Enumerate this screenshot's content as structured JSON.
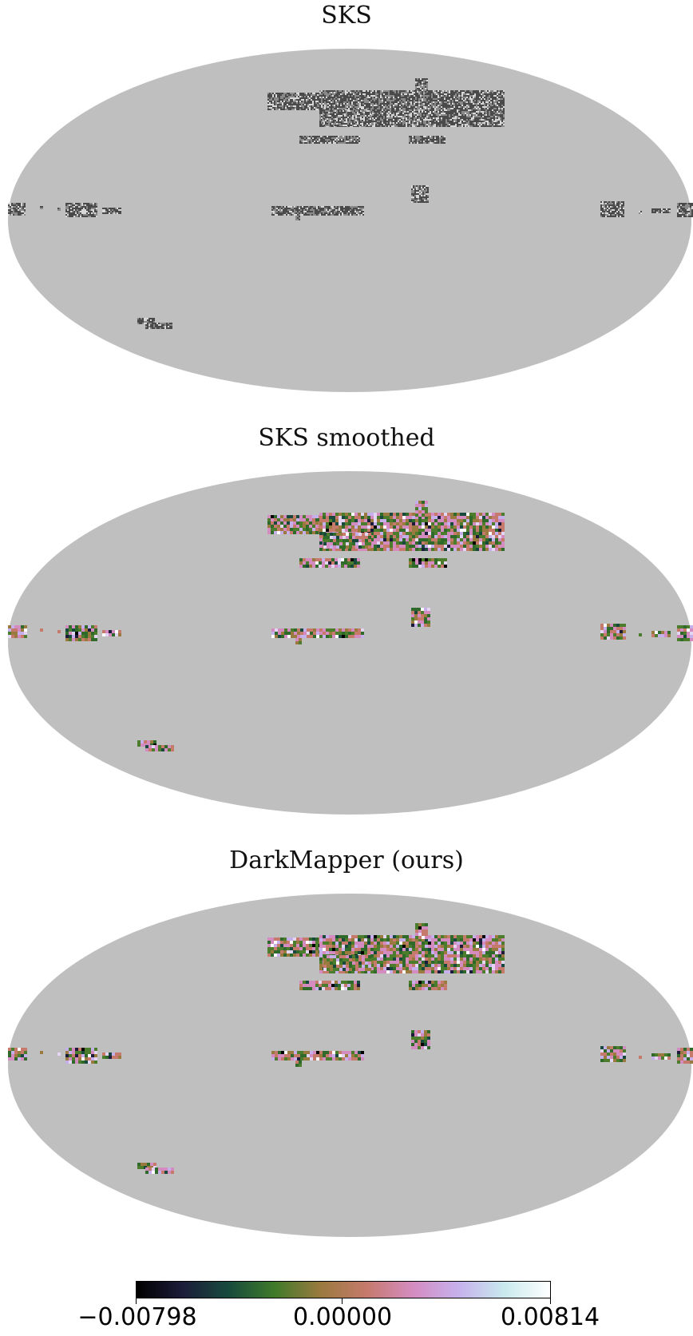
{
  "chart_data": [
    {
      "type": "heatmap",
      "projection": "mollweide",
      "title": "SKS",
      "colormap": "gray-noise",
      "background": "#bfbfbf"
    },
    {
      "type": "heatmap",
      "projection": "mollweide",
      "title": "SKS smoothed",
      "colormap": "cubehelix",
      "background": "#bfbfbf"
    },
    {
      "type": "heatmap",
      "projection": "mollweide",
      "title": "DarkMapper (ours)",
      "colormap": "cubehelix",
      "background": "#bfbfbf"
    }
  ],
  "colorbar": {
    "min_label": "−0.00798",
    "mid_label": "0.00000",
    "max_label": "0.00814",
    "min": -0.00798,
    "max": 0.00814,
    "colors": [
      "#000000",
      "#1c1c3a",
      "#174a3c",
      "#3f7a2a",
      "#9a7a3e",
      "#c57a6c",
      "#d48cc0",
      "#c6b0ec",
      "#c9e9ee",
      "#ffffff"
    ]
  }
}
